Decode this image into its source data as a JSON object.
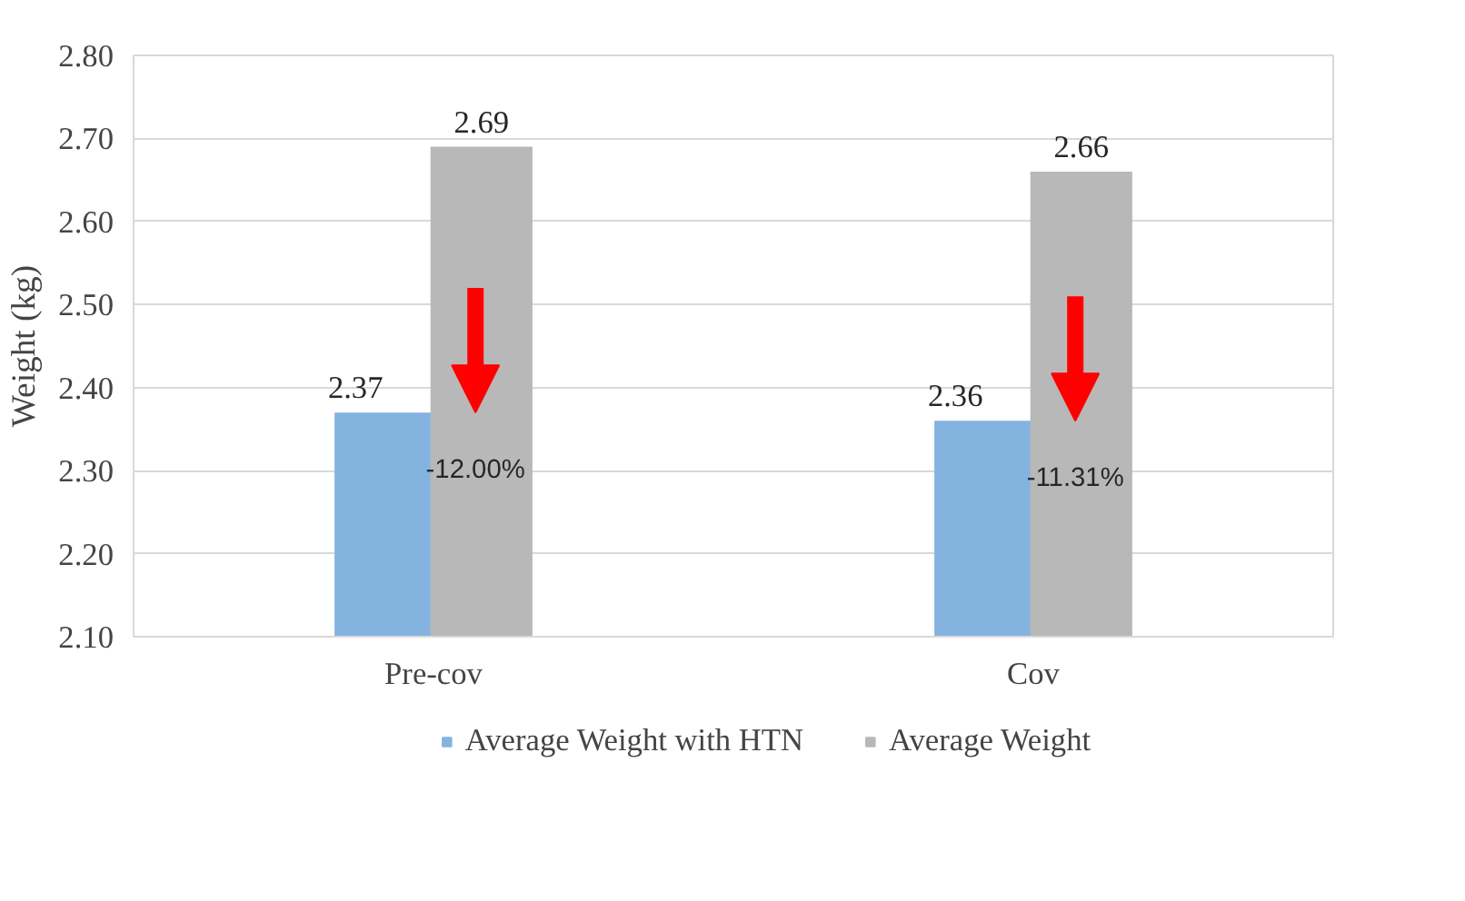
{
  "chart_data": {
    "type": "bar",
    "ylabel": "Weight (kg)",
    "categories": [
      "Pre-cov",
      "Cov"
    ],
    "series": [
      {
        "name": "Average Weight with HTN",
        "color": "#85b3e0",
        "values": [
          2.37,
          2.36
        ]
      },
      {
        "name": "Average Weight",
        "color": "#b8b8b8",
        "values": [
          2.69,
          2.66
        ]
      }
    ],
    "ylim": [
      2.1,
      2.8
    ],
    "yticks": [
      {
        "value": 2.1,
        "label": "2.10"
      },
      {
        "value": 2.2,
        "label": "2.20"
      },
      {
        "value": 2.3,
        "label": "2.30"
      },
      {
        "value": 2.4,
        "label": "2.40"
      },
      {
        "value": 2.5,
        "label": "2.50"
      },
      {
        "value": 2.6,
        "label": "2.60"
      },
      {
        "value": 2.7,
        "label": "2.70"
      },
      {
        "value": 2.8,
        "label": "2.80"
      }
    ],
    "grid": "y",
    "legend": "bottom",
    "data_labels": true,
    "annotations": [
      {
        "text": "-12.00%",
        "x": "Pre-cov",
        "y": 2.3
      },
      {
        "text": "-11.31%",
        "x": "Cov",
        "y": 2.29
      }
    ]
  }
}
